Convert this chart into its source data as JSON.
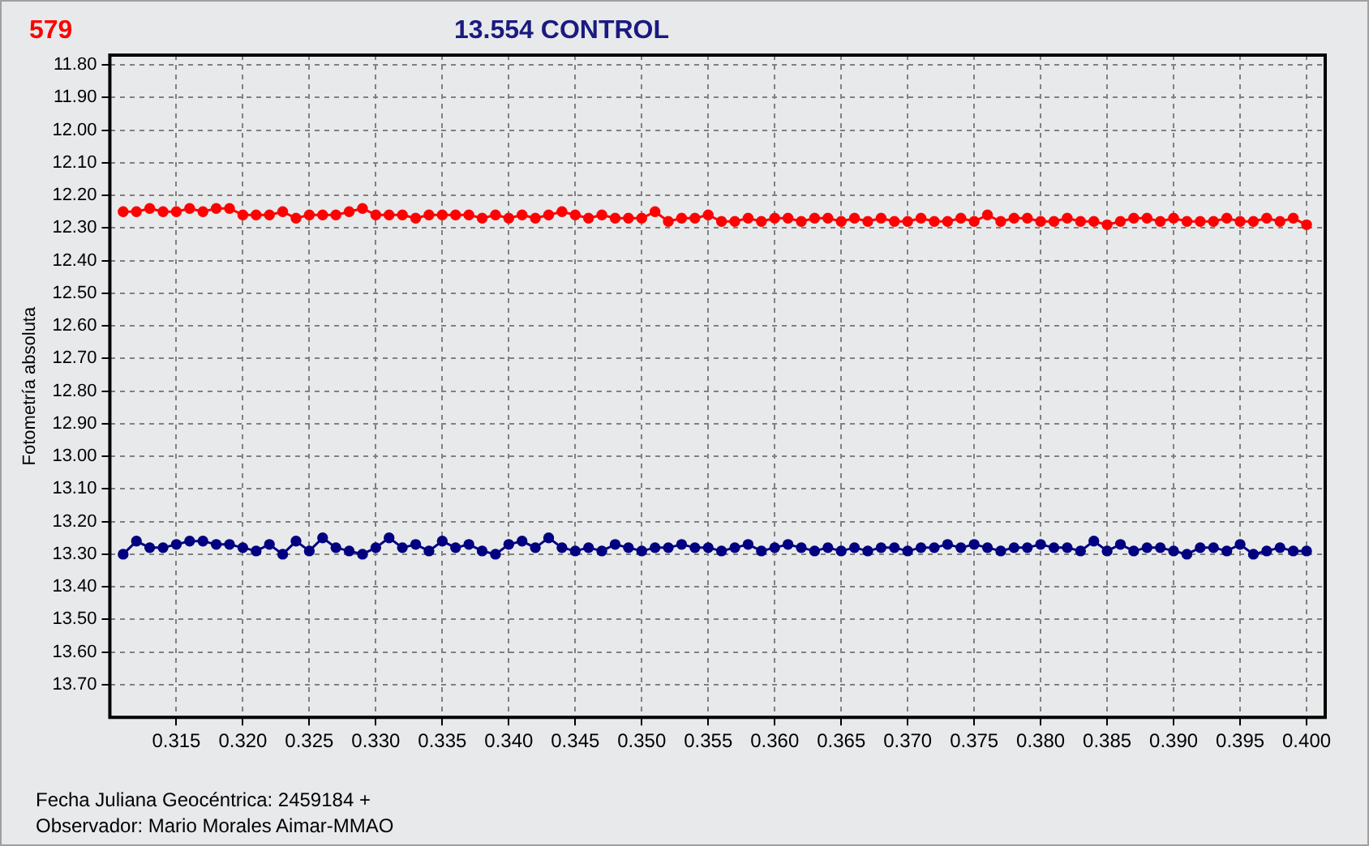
{
  "chart_data": {
    "type": "line",
    "title": "13.554 CONTROL",
    "ylabel": "Fotometría absoluta",
    "annotations": [
      "Fecha Juliana Geocéntrica: 2459184 +",
      "Observador: Mario Morales Aimar-MMAO"
    ],
    "x": [
      0.311,
      0.312,
      0.313,
      0.314,
      0.315,
      0.316,
      0.317,
      0.318,
      0.319,
      0.32,
      0.321,
      0.322,
      0.323,
      0.324,
      0.325,
      0.326,
      0.327,
      0.328,
      0.329,
      0.33,
      0.331,
      0.332,
      0.333,
      0.334,
      0.335,
      0.336,
      0.337,
      0.338,
      0.339,
      0.34,
      0.341,
      0.342,
      0.343,
      0.344,
      0.345,
      0.346,
      0.347,
      0.348,
      0.349,
      0.35,
      0.351,
      0.352,
      0.353,
      0.354,
      0.355,
      0.356,
      0.357,
      0.358,
      0.359,
      0.36,
      0.361,
      0.362,
      0.363,
      0.364,
      0.365,
      0.366,
      0.367,
      0.368,
      0.369,
      0.37,
      0.371,
      0.372,
      0.373,
      0.374,
      0.375,
      0.376,
      0.377,
      0.378,
      0.379,
      0.38,
      0.381,
      0.382,
      0.383,
      0.384,
      0.385,
      0.386,
      0.387,
      0.388,
      0.389,
      0.39,
      0.391,
      0.392,
      0.393,
      0.394,
      0.395,
      0.396,
      0.397,
      0.398,
      0.399,
      0.4
    ],
    "series": [
      {
        "name": "579",
        "color": "#ff0000",
        "values": [
          12.25,
          12.25,
          12.24,
          12.25,
          12.25,
          12.24,
          12.25,
          12.24,
          12.24,
          12.26,
          12.26,
          12.26,
          12.25,
          12.27,
          12.26,
          12.26,
          12.26,
          12.25,
          12.24,
          12.26,
          12.26,
          12.26,
          12.27,
          12.26,
          12.26,
          12.26,
          12.26,
          12.27,
          12.26,
          12.27,
          12.26,
          12.27,
          12.26,
          12.25,
          12.26,
          12.27,
          12.26,
          12.27,
          12.27,
          12.27,
          12.25,
          12.28,
          12.27,
          12.27,
          12.26,
          12.28,
          12.28,
          12.27,
          12.28,
          12.27,
          12.27,
          12.28,
          12.27,
          12.27,
          12.28,
          12.27,
          12.28,
          12.27,
          12.28,
          12.28,
          12.27,
          12.28,
          12.28,
          12.27,
          12.28,
          12.26,
          12.28,
          12.27,
          12.27,
          12.28,
          12.28,
          12.27,
          12.28,
          12.28,
          12.29,
          12.28,
          12.27,
          12.27,
          12.28,
          12.27,
          12.28,
          12.28,
          12.28,
          12.27,
          12.28,
          12.28,
          12.27,
          12.28,
          12.27,
          12.29
        ]
      },
      {
        "color": "#000080",
        "values": [
          13.3,
          13.26,
          13.28,
          13.28,
          13.27,
          13.26,
          13.26,
          13.27,
          13.27,
          13.28,
          13.29,
          13.27,
          13.3,
          13.26,
          13.29,
          13.25,
          13.28,
          13.29,
          13.3,
          13.28,
          13.25,
          13.28,
          13.27,
          13.29,
          13.26,
          13.28,
          13.27,
          13.29,
          13.3,
          13.27,
          13.26,
          13.28,
          13.25,
          13.28,
          13.29,
          13.28,
          13.29,
          13.27,
          13.28,
          13.29,
          13.28,
          13.28,
          13.27,
          13.28,
          13.28,
          13.29,
          13.28,
          13.27,
          13.29,
          13.28,
          13.27,
          13.28,
          13.29,
          13.28,
          13.29,
          13.28,
          13.29,
          13.28,
          13.28,
          13.29,
          13.28,
          13.28,
          13.27,
          13.28,
          13.27,
          13.28,
          13.29,
          13.28,
          13.28,
          13.27,
          13.28,
          13.28,
          13.29,
          13.26,
          13.29,
          13.27,
          13.29,
          13.28,
          13.28,
          13.29,
          13.3,
          13.28,
          13.28,
          13.29,
          13.27,
          13.3,
          13.29,
          13.28,
          13.29,
          13.29
        ]
      }
    ],
    "xlim": [
      0.31,
      0.4014
    ],
    "xticks": [
      0.315,
      {
        "value": 0.32,
        "label": "0.320"
      },
      0.325,
      {
        "value": 0.33,
        "label": "0.330"
      },
      0.335,
      {
        "value": 0.34,
        "label": "0.340"
      },
      0.345,
      {
        "value": 0.35,
        "label": "0.350"
      },
      0.355,
      {
        "value": 0.36,
        "label": "0.360"
      },
      0.365,
      {
        "value": 0.37,
        "label": "0.370"
      },
      0.375,
      {
        "value": 0.38,
        "label": "0.380"
      },
      0.385,
      {
        "value": 0.39,
        "label": "0.390"
      },
      0.395,
      {
        "value": 0.4,
        "label": "0.400"
      }
    ],
    "ylim": [
      13.8,
      11.77
    ],
    "yticks": [
      {
        "value": 11.8,
        "label": "11.80"
      },
      {
        "value": 11.9,
        "label": "11.90"
      },
      {
        "value": 12,
        "label": "12.00"
      },
      {
        "value": 12.1,
        "label": "12.10"
      },
      {
        "value": 12.2,
        "label": "12.20"
      },
      {
        "value": 12.3,
        "label": "12.30"
      },
      {
        "value": 12.4,
        "label": "12.40"
      },
      {
        "value": 12.5,
        "label": "12.50"
      },
      {
        "value": 12.6,
        "label": "12.60"
      },
      {
        "value": 12.7,
        "label": "12.70"
      },
      {
        "value": 12.8,
        "label": "12.80"
      },
      {
        "value": 12.9,
        "label": "12.90"
      },
      {
        "value": 13,
        "label": "13.00"
      },
      {
        "value": 13.1,
        "label": "13.10"
      },
      {
        "value": 13.2,
        "label": "13.20"
      },
      {
        "value": 13.3,
        "label": "13.30"
      },
      {
        "value": 13.4,
        "label": "13.40"
      },
      {
        "value": 13.5,
        "label": "13.50"
      },
      {
        "value": 13.6,
        "label": "13.60"
      },
      {
        "value": 13.7,
        "label": "13.70"
      }
    ],
    "grid": true,
    "legend": "top left",
    "marker": "circle",
    "line_style": "solid"
  }
}
